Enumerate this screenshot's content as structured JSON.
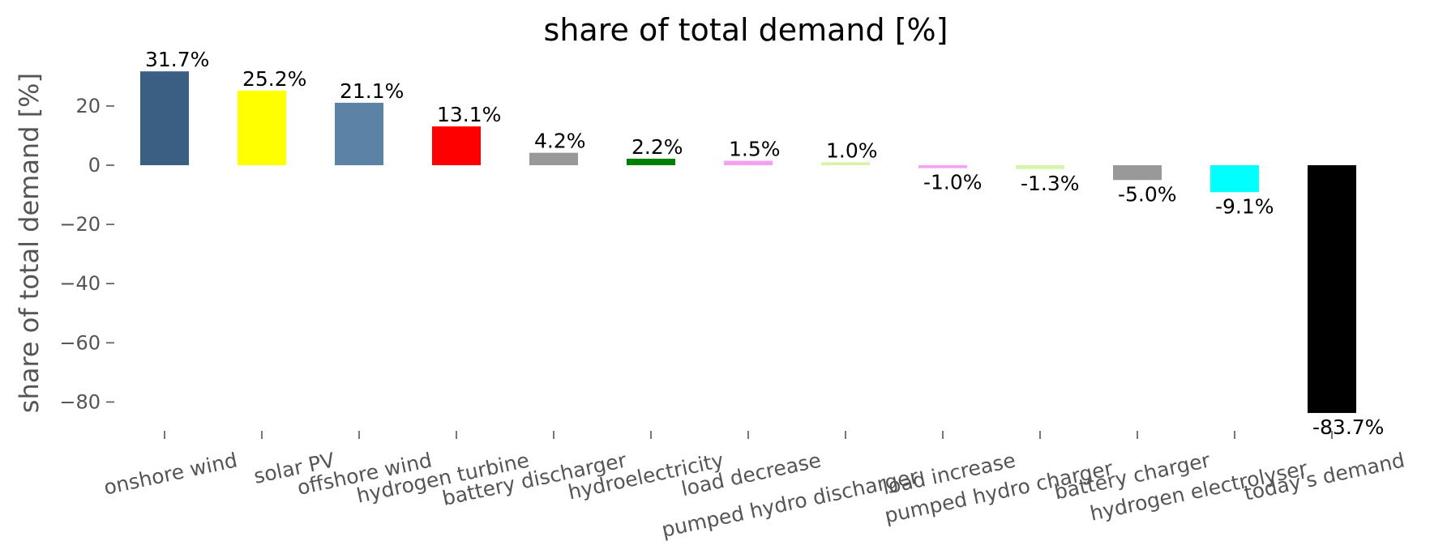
{
  "chart_data": {
    "type": "bar",
    "title": "share of total demand [%]",
    "xlabel": "",
    "ylabel": "share of total demand [%]",
    "ylim": [
      -88,
      35
    ],
    "yticks": [
      20,
      0,
      -20,
      -40,
      -60,
      -80
    ],
    "ytick_labels": [
      "20",
      "0",
      "−20",
      "−40",
      "−60",
      "−80"
    ],
    "grid": false,
    "legend": "none",
    "categories": [
      "onshore wind",
      "solar PV",
      "offshore wind",
      "hydrogen turbine",
      "battery discharger",
      "hydroelectricity",
      "load decrease",
      "pumped hydro discharger",
      "load increase",
      "pumped hydro charger",
      "battery charger",
      "hydrogen electrolyser",
      "today's demand"
    ],
    "values": [
      31.7,
      25.2,
      21.1,
      13.1,
      4.2,
      2.2,
      1.5,
      1.0,
      -1.0,
      -1.3,
      -5.0,
      -9.1,
      -83.7
    ],
    "data_labels": [
      "31.7%",
      "25.2%",
      "21.1%",
      "13.1%",
      "4.2%",
      "2.2%",
      "1.5%",
      "1.0%",
      "-1.0%",
      "-1.3%",
      "-5.0%",
      "-9.1%",
      "-83.7%"
    ],
    "colors": [
      "#3b5f82",
      "#ffff00",
      "#5b83a5",
      "#ff0000",
      "#999999",
      "#008000",
      "#f4a1f1",
      "#d7f5a8",
      "#f4a1f1",
      "#d7f5a8",
      "#999999",
      "#00ffff",
      "#000000"
    ]
  }
}
